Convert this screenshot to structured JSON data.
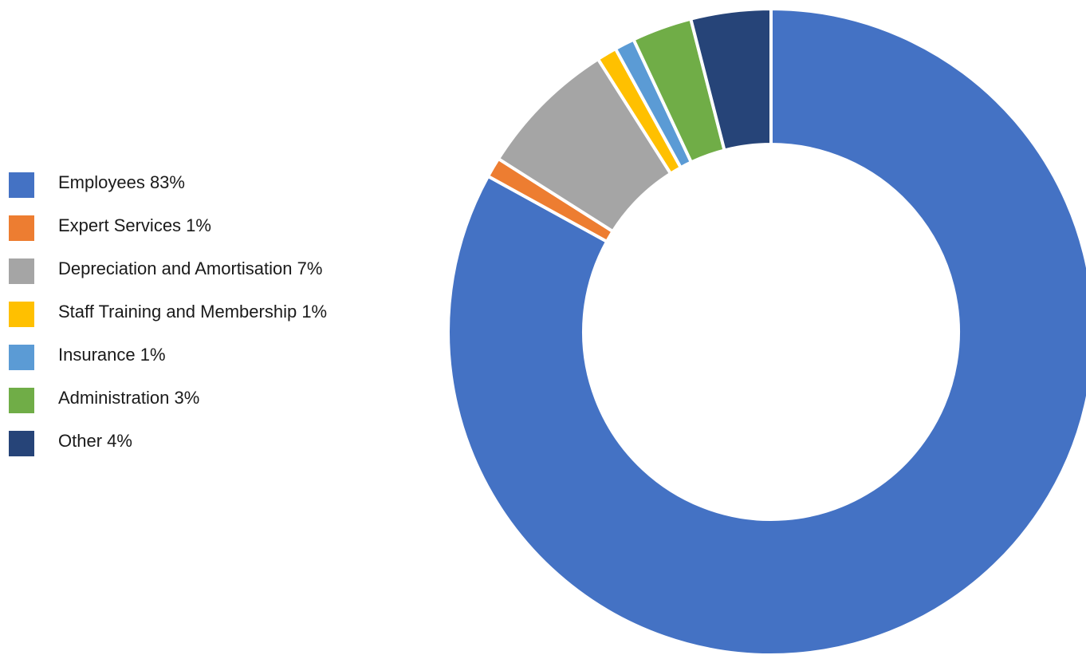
{
  "chart_data": {
    "type": "pie",
    "variant": "donut",
    "legend_placement": "left",
    "categories": [
      "Employees",
      "Expert Services",
      "Depreciation and Amortisation",
      "Staff Training and Membership",
      "Insurance",
      "Administration",
      "Other"
    ],
    "values": [
      83,
      1,
      7,
      1,
      1,
      3,
      4
    ],
    "legend_labels": [
      "Employees 83%",
      "Expert Services 1%",
      "Depreciation and Amortisation 7%",
      "Staff Training and Membership 1%",
      "Insurance 1%",
      "Administration 3%",
      "Other 4%"
    ],
    "colors": [
      "#4472C4",
      "#ED7D31",
      "#A5A5A5",
      "#FFC000",
      "#5B9BD5",
      "#70AD47",
      "#264478"
    ]
  }
}
